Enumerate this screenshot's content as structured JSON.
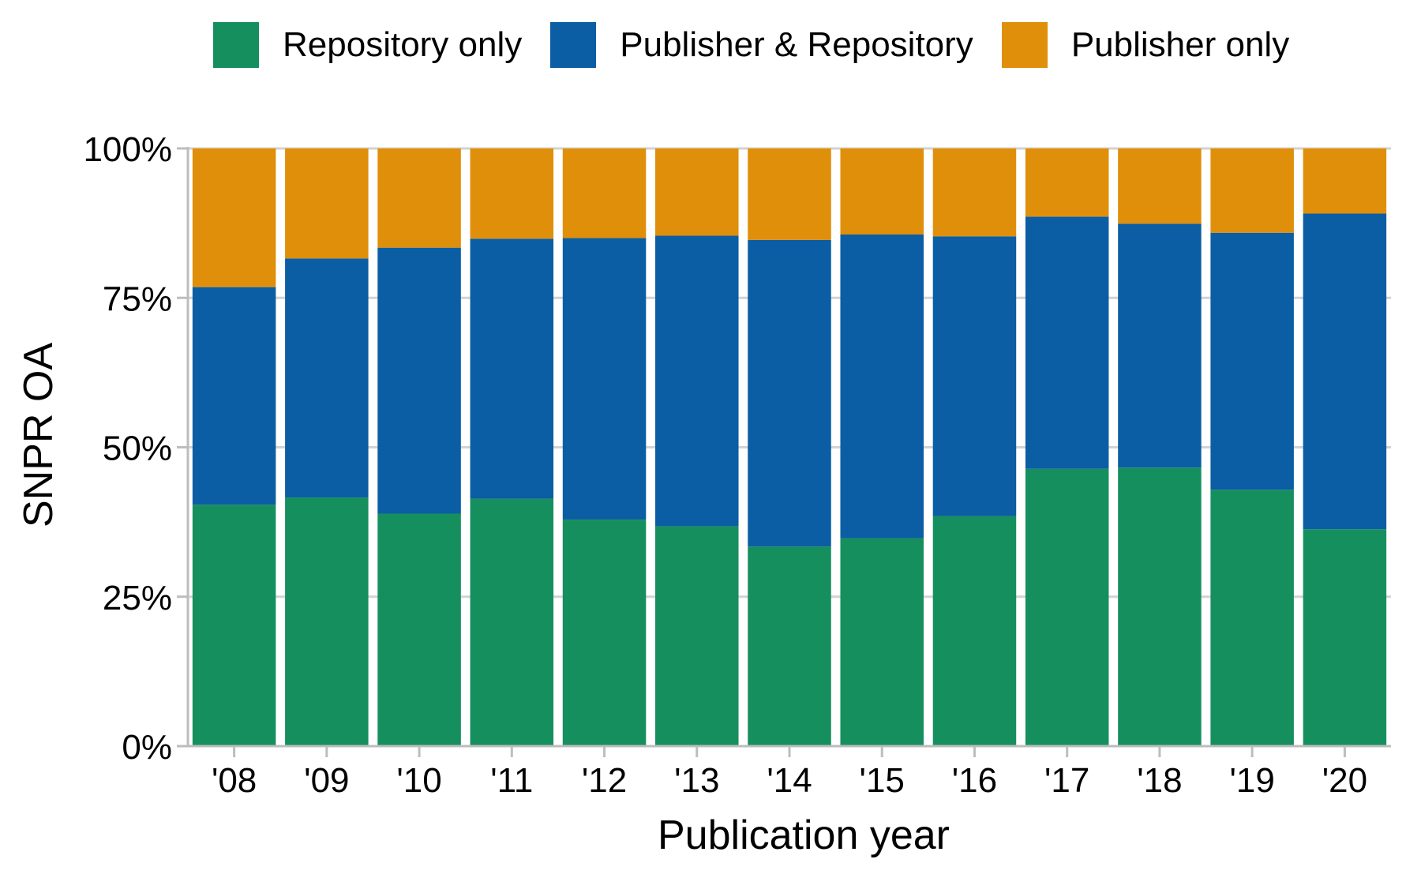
{
  "chart_data": {
    "type": "bar",
    "stacked": true,
    "normalized": true,
    "categories": [
      "'08",
      "'09",
      "'10",
      "'11",
      "'12",
      "'13",
      "'14",
      "'15",
      "'16",
      "'17",
      "'18",
      "'19",
      "'20"
    ],
    "series": [
      {
        "name": "Repository only",
        "color": "#168f5f",
        "values": [
          40.4,
          41.6,
          38.9,
          41.4,
          37.9,
          36.8,
          33.4,
          34.8,
          38.5,
          46.4,
          46.6,
          42.9,
          36.3
        ]
      },
      {
        "name": "Publisher & Repository",
        "color": "#0b5ea3",
        "values": [
          36.4,
          40.0,
          44.5,
          43.5,
          47.1,
          48.6,
          51.3,
          50.8,
          46.8,
          42.2,
          40.8,
          43.0,
          52.8
        ]
      },
      {
        "name": "Publisher only",
        "color": "#e08f0a",
        "values": [
          23.2,
          18.4,
          16.6,
          15.1,
          15.0,
          14.6,
          15.3,
          14.4,
          14.7,
          11.4,
          12.6,
          14.1,
          10.9
        ]
      }
    ],
    "yticks": [
      "0%",
      "25%",
      "50%",
      "75%",
      "100%"
    ],
    "ylim": [
      0,
      100
    ],
    "xlabel": "Publication year",
    "ylabel": "SNPR OA",
    "legend_position": "top",
    "grid": "horizontal"
  }
}
